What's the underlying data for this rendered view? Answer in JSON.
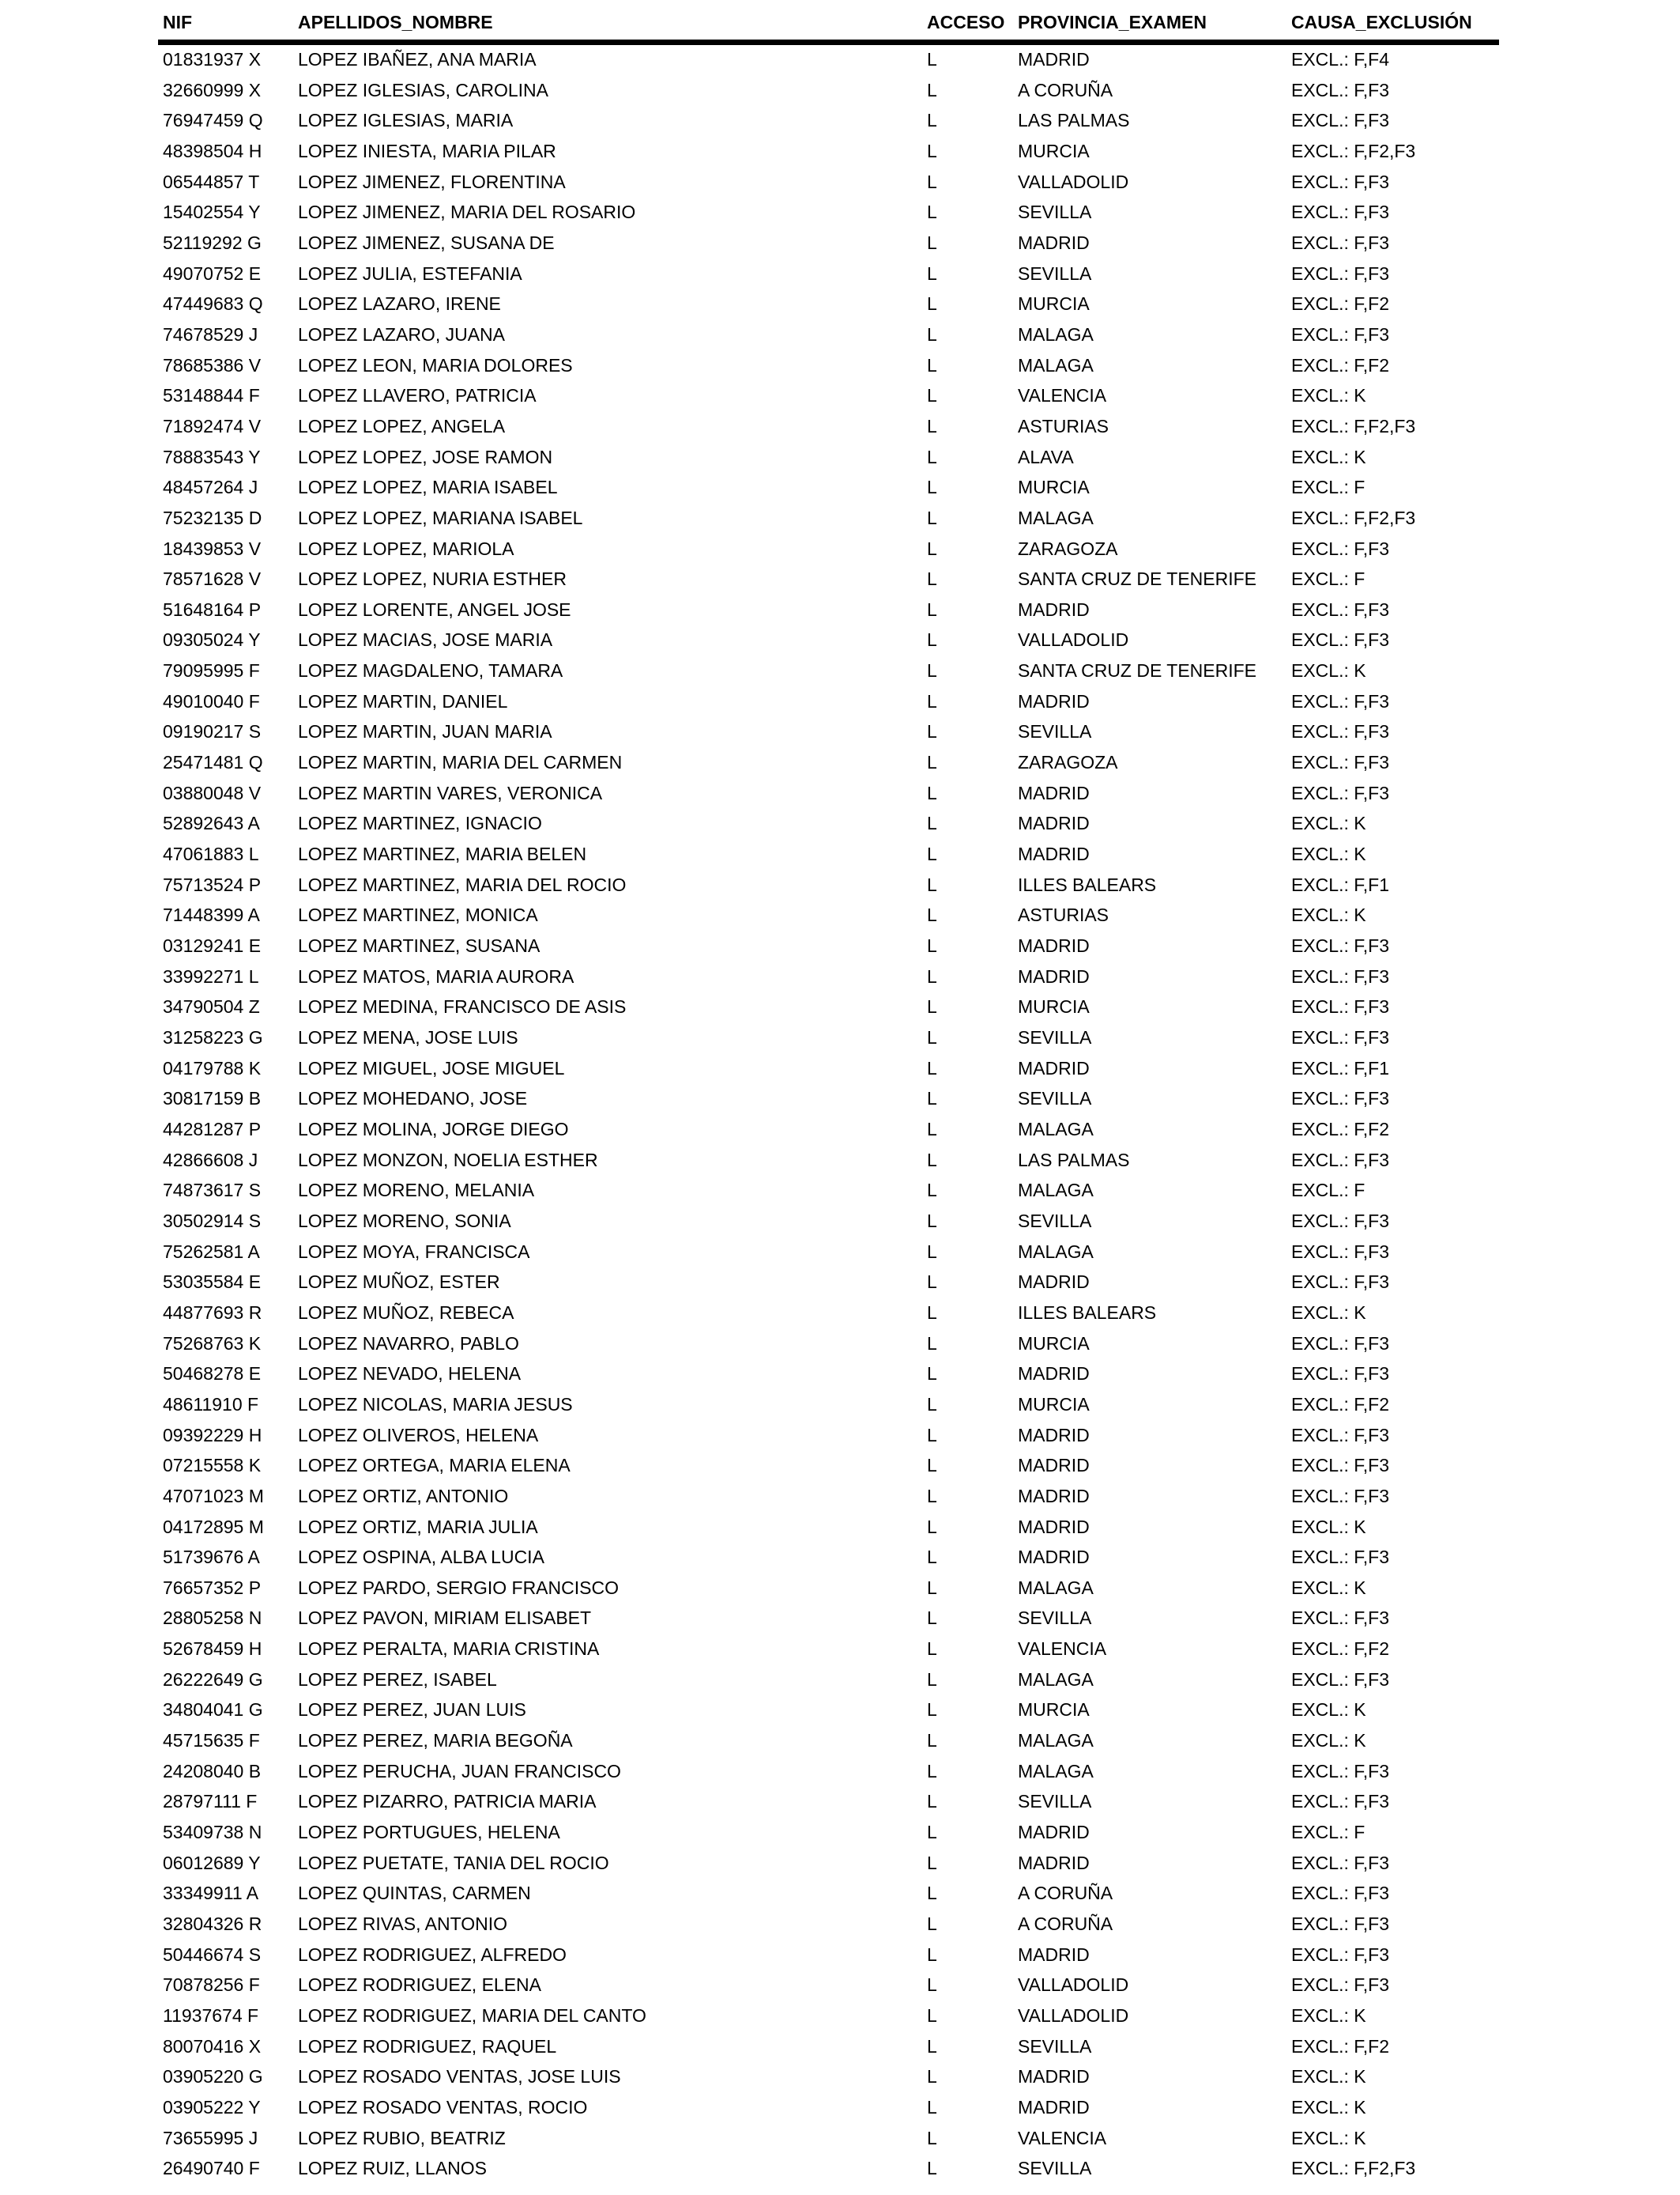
{
  "page": {
    "background_color": "#ffffff",
    "ink_color": "#000000"
  },
  "table": {
    "columns": [
      {
        "key": "nif",
        "label": "NIF"
      },
      {
        "key": "nombre",
        "label": "APELLIDOS_NOMBRE"
      },
      {
        "key": "acceso",
        "label": "ACCESO"
      },
      {
        "key": "provincia",
        "label": "PROVINCIA_EXAMEN"
      },
      {
        "key": "causa",
        "label": "CAUSA_EXCLUSIÓN"
      }
    ],
    "rows": [
      {
        "nif": "01831937 X",
        "nombre": "LOPEZ IBAÑEZ, ANA MARIA",
        "acceso": "L",
        "provincia": "MADRID",
        "causa": "EXCL.: F,F4"
      },
      {
        "nif": "32660999 X",
        "nombre": "LOPEZ IGLESIAS, CAROLINA",
        "acceso": "L",
        "provincia": "A CORUÑA",
        "causa": "EXCL.: F,F3"
      },
      {
        "nif": "76947459 Q",
        "nombre": "LOPEZ IGLESIAS, MARIA",
        "acceso": "L",
        "provincia": "LAS PALMAS",
        "causa": "EXCL.: F,F3"
      },
      {
        "nif": "48398504 H",
        "nombre": "LOPEZ INIESTA, MARIA PILAR",
        "acceso": "L",
        "provincia": "MURCIA",
        "causa": "EXCL.: F,F2,F3"
      },
      {
        "nif": "06544857 T",
        "nombre": "LOPEZ JIMENEZ, FLORENTINA",
        "acceso": "L",
        "provincia": "VALLADOLID",
        "causa": "EXCL.: F,F3"
      },
      {
        "nif": "15402554 Y",
        "nombre": "LOPEZ JIMENEZ, MARIA DEL ROSARIO",
        "acceso": "L",
        "provincia": "SEVILLA",
        "causa": "EXCL.: F,F3"
      },
      {
        "nif": "52119292 G",
        "nombre": "LOPEZ JIMENEZ, SUSANA DE",
        "acceso": "L",
        "provincia": "MADRID",
        "causa": "EXCL.: F,F3"
      },
      {
        "nif": "49070752 E",
        "nombre": "LOPEZ JULIA, ESTEFANIA",
        "acceso": "L",
        "provincia": "SEVILLA",
        "causa": "EXCL.: F,F3"
      },
      {
        "nif": "47449683 Q",
        "nombre": "LOPEZ LAZARO, IRENE",
        "acceso": "L",
        "provincia": "MURCIA",
        "causa": "EXCL.: F,F2"
      },
      {
        "nif": "74678529 J",
        "nombre": "LOPEZ LAZARO, JUANA",
        "acceso": "L",
        "provincia": "MALAGA",
        "causa": "EXCL.: F,F3"
      },
      {
        "nif": "78685386 V",
        "nombre": "LOPEZ LEON, MARIA DOLORES",
        "acceso": "L",
        "provincia": "MALAGA",
        "causa": "EXCL.: F,F2"
      },
      {
        "nif": "53148844 F",
        "nombre": "LOPEZ LLAVERO, PATRICIA",
        "acceso": "L",
        "provincia": "VALENCIA",
        "causa": "EXCL.: K"
      },
      {
        "nif": "71892474 V",
        "nombre": "LOPEZ LOPEZ, ANGELA",
        "acceso": "L",
        "provincia": "ASTURIAS",
        "causa": "EXCL.: F,F2,F3"
      },
      {
        "nif": "78883543 Y",
        "nombre": "LOPEZ LOPEZ, JOSE RAMON",
        "acceso": "L",
        "provincia": "ALAVA",
        "causa": "EXCL.: K"
      },
      {
        "nif": "48457264 J",
        "nombre": "LOPEZ LOPEZ, MARIA ISABEL",
        "acceso": "L",
        "provincia": "MURCIA",
        "causa": "EXCL.: F"
      },
      {
        "nif": "75232135 D",
        "nombre": "LOPEZ LOPEZ, MARIANA ISABEL",
        "acceso": "L",
        "provincia": "MALAGA",
        "causa": "EXCL.: F,F2,F3"
      },
      {
        "nif": "18439853 V",
        "nombre": "LOPEZ LOPEZ, MARIOLA",
        "acceso": "L",
        "provincia": "ZARAGOZA",
        "causa": "EXCL.: F,F3"
      },
      {
        "nif": "78571628 V",
        "nombre": "LOPEZ LOPEZ, NURIA ESTHER",
        "acceso": "L",
        "provincia": "SANTA CRUZ DE TENERIFE",
        "causa": "EXCL.: F"
      },
      {
        "nif": "51648164 P",
        "nombre": "LOPEZ LORENTE, ANGEL JOSE",
        "acceso": "L",
        "provincia": "MADRID",
        "causa": "EXCL.: F,F3"
      },
      {
        "nif": "09305024 Y",
        "nombre": "LOPEZ MACIAS, JOSE MARIA",
        "acceso": "L",
        "provincia": "VALLADOLID",
        "causa": "EXCL.: F,F3"
      },
      {
        "nif": "79095995 F",
        "nombre": "LOPEZ MAGDALENO, TAMARA",
        "acceso": "L",
        "provincia": "SANTA CRUZ DE TENERIFE",
        "causa": "EXCL.: K"
      },
      {
        "nif": "49010040 F",
        "nombre": "LOPEZ MARTIN, DANIEL",
        "acceso": "L",
        "provincia": "MADRID",
        "causa": "EXCL.: F,F3"
      },
      {
        "nif": "09190217 S",
        "nombre": "LOPEZ MARTIN, JUAN MARIA",
        "acceso": "L",
        "provincia": "SEVILLA",
        "causa": "EXCL.: F,F3"
      },
      {
        "nif": "25471481 Q",
        "nombre": "LOPEZ MARTIN, MARIA DEL CARMEN",
        "acceso": "L",
        "provincia": "ZARAGOZA",
        "causa": "EXCL.: F,F3"
      },
      {
        "nif": "03880048 V",
        "nombre": "LOPEZ MARTIN VARES, VERONICA",
        "acceso": "L",
        "provincia": "MADRID",
        "causa": "EXCL.: F,F3"
      },
      {
        "nif": "52892643 A",
        "nombre": "LOPEZ MARTINEZ, IGNACIO",
        "acceso": "L",
        "provincia": "MADRID",
        "causa": "EXCL.: K"
      },
      {
        "nif": "47061883 L",
        "nombre": "LOPEZ MARTINEZ, MARIA BELEN",
        "acceso": "L",
        "provincia": "MADRID",
        "causa": "EXCL.: K"
      },
      {
        "nif": "75713524 P",
        "nombre": "LOPEZ MARTINEZ, MARIA DEL ROCIO",
        "acceso": "L",
        "provincia": "ILLES BALEARS",
        "causa": "EXCL.: F,F1"
      },
      {
        "nif": "71448399 A",
        "nombre": "LOPEZ MARTINEZ, MONICA",
        "acceso": "L",
        "provincia": "ASTURIAS",
        "causa": "EXCL.: K"
      },
      {
        "nif": "03129241 E",
        "nombre": "LOPEZ MARTINEZ, SUSANA",
        "acceso": "L",
        "provincia": "MADRID",
        "causa": "EXCL.: F,F3"
      },
      {
        "nif": "33992271 L",
        "nombre": "LOPEZ MATOS, MARIA AURORA",
        "acceso": "L",
        "provincia": "MADRID",
        "causa": "EXCL.: F,F3"
      },
      {
        "nif": "34790504 Z",
        "nombre": "LOPEZ MEDINA, FRANCISCO DE ASIS",
        "acceso": "L",
        "provincia": "MURCIA",
        "causa": "EXCL.: F,F3"
      },
      {
        "nif": "31258223 G",
        "nombre": "LOPEZ MENA, JOSE LUIS",
        "acceso": "L",
        "provincia": "SEVILLA",
        "causa": "EXCL.: F,F3"
      },
      {
        "nif": "04179788 K",
        "nombre": "LOPEZ MIGUEL, JOSE MIGUEL",
        "acceso": "L",
        "provincia": "MADRID",
        "causa": "EXCL.: F,F1"
      },
      {
        "nif": "30817159 B",
        "nombre": "LOPEZ MOHEDANO, JOSE",
        "acceso": "L",
        "provincia": "SEVILLA",
        "causa": "EXCL.: F,F3"
      },
      {
        "nif": "44281287 P",
        "nombre": "LOPEZ MOLINA, JORGE DIEGO",
        "acceso": "L",
        "provincia": "MALAGA",
        "causa": "EXCL.: F,F2"
      },
      {
        "nif": "42866608 J",
        "nombre": "LOPEZ MONZON, NOELIA ESTHER",
        "acceso": "L",
        "provincia": "LAS PALMAS",
        "causa": "EXCL.: F,F3"
      },
      {
        "nif": "74873617 S",
        "nombre": "LOPEZ MORENO, MELANIA",
        "acceso": "L",
        "provincia": "MALAGA",
        "causa": "EXCL.: F"
      },
      {
        "nif": "30502914 S",
        "nombre": "LOPEZ MORENO, SONIA",
        "acceso": "L",
        "provincia": "SEVILLA",
        "causa": "EXCL.: F,F3"
      },
      {
        "nif": "75262581 A",
        "nombre": "LOPEZ MOYA, FRANCISCA",
        "acceso": "L",
        "provincia": "MALAGA",
        "causa": "EXCL.: F,F3"
      },
      {
        "nif": "53035584 E",
        "nombre": "LOPEZ MUÑOZ, ESTER",
        "acceso": "L",
        "provincia": "MADRID",
        "causa": "EXCL.: F,F3"
      },
      {
        "nif": "44877693 R",
        "nombre": "LOPEZ MUÑOZ, REBECA",
        "acceso": "L",
        "provincia": "ILLES BALEARS",
        "causa": "EXCL.: K"
      },
      {
        "nif": "75268763 K",
        "nombre": "LOPEZ NAVARRO, PABLO",
        "acceso": "L",
        "provincia": "MURCIA",
        "causa": "EXCL.: F,F3"
      },
      {
        "nif": "50468278 E",
        "nombre": "LOPEZ NEVADO, HELENA",
        "acceso": "L",
        "provincia": "MADRID",
        "causa": "EXCL.: F,F3"
      },
      {
        "nif": "48611910 F",
        "nombre": "LOPEZ NICOLAS, MARIA JESUS",
        "acceso": "L",
        "provincia": "MURCIA",
        "causa": "EXCL.: F,F2"
      },
      {
        "nif": "09392229 H",
        "nombre": "LOPEZ OLIVEROS, HELENA",
        "acceso": "L",
        "provincia": "MADRID",
        "causa": "EXCL.: F,F3"
      },
      {
        "nif": "07215558 K",
        "nombre": "LOPEZ ORTEGA, MARIA ELENA",
        "acceso": "L",
        "provincia": "MADRID",
        "causa": "EXCL.: F,F3"
      },
      {
        "nif": "47071023 M",
        "nombre": "LOPEZ ORTIZ, ANTONIO",
        "acceso": "L",
        "provincia": "MADRID",
        "causa": "EXCL.: F,F3"
      },
      {
        "nif": "04172895 M",
        "nombre": "LOPEZ ORTIZ, MARIA JULIA",
        "acceso": "L",
        "provincia": "MADRID",
        "causa": "EXCL.: K"
      },
      {
        "nif": "51739676 A",
        "nombre": "LOPEZ OSPINA, ALBA LUCIA",
        "acceso": "L",
        "provincia": "MADRID",
        "causa": "EXCL.: F,F3"
      },
      {
        "nif": "76657352 P",
        "nombre": "LOPEZ PARDO, SERGIO FRANCISCO",
        "acceso": "L",
        "provincia": "MALAGA",
        "causa": "EXCL.: K"
      },
      {
        "nif": "28805258 N",
        "nombre": "LOPEZ PAVON, MIRIAM ELISABET",
        "acceso": "L",
        "provincia": "SEVILLA",
        "causa": "EXCL.: F,F3"
      },
      {
        "nif": "52678459 H",
        "nombre": "LOPEZ PERALTA, MARIA CRISTINA",
        "acceso": "L",
        "provincia": "VALENCIA",
        "causa": "EXCL.: F,F2"
      },
      {
        "nif": "26222649 G",
        "nombre": "LOPEZ PEREZ, ISABEL",
        "acceso": "L",
        "provincia": "MALAGA",
        "causa": "EXCL.: F,F3"
      },
      {
        "nif": "34804041 G",
        "nombre": "LOPEZ PEREZ, JUAN LUIS",
        "acceso": "L",
        "provincia": "MURCIA",
        "causa": "EXCL.: K"
      },
      {
        "nif": "45715635 F",
        "nombre": "LOPEZ PEREZ, MARIA BEGOÑA",
        "acceso": "L",
        "provincia": "MALAGA",
        "causa": "EXCL.: K"
      },
      {
        "nif": "24208040 B",
        "nombre": "LOPEZ PERUCHA, JUAN FRANCISCO",
        "acceso": "L",
        "provincia": "MALAGA",
        "causa": "EXCL.: F,F3"
      },
      {
        "nif": "28797111 F",
        "nombre": "LOPEZ PIZARRO, PATRICIA MARIA",
        "acceso": "L",
        "provincia": "SEVILLA",
        "causa": "EXCL.: F,F3"
      },
      {
        "nif": "53409738 N",
        "nombre": "LOPEZ PORTUGUES, HELENA",
        "acceso": "L",
        "provincia": "MADRID",
        "causa": "EXCL.: F"
      },
      {
        "nif": "06012689 Y",
        "nombre": "LOPEZ PUETATE, TANIA DEL ROCIO",
        "acceso": "L",
        "provincia": "MADRID",
        "causa": "EXCL.: F,F3"
      },
      {
        "nif": "33349911 A",
        "nombre": "LOPEZ QUINTAS, CARMEN",
        "acceso": "L",
        "provincia": "A CORUÑA",
        "causa": "EXCL.: F,F3"
      },
      {
        "nif": "32804326 R",
        "nombre": "LOPEZ RIVAS, ANTONIO",
        "acceso": "L",
        "provincia": "A CORUÑA",
        "causa": "EXCL.: F,F3"
      },
      {
        "nif": "50446674 S",
        "nombre": "LOPEZ RODRIGUEZ, ALFREDO",
        "acceso": "L",
        "provincia": "MADRID",
        "causa": "EXCL.: F,F3"
      },
      {
        "nif": "70878256 F",
        "nombre": "LOPEZ RODRIGUEZ, ELENA",
        "acceso": "L",
        "provincia": "VALLADOLID",
        "causa": "EXCL.: F,F3"
      },
      {
        "nif": "11937674 F",
        "nombre": "LOPEZ RODRIGUEZ, MARIA DEL CANTO",
        "acceso": "L",
        "provincia": "VALLADOLID",
        "causa": "EXCL.: K"
      },
      {
        "nif": "80070416 X",
        "nombre": "LOPEZ RODRIGUEZ, RAQUEL",
        "acceso": "L",
        "provincia": "SEVILLA",
        "causa": "EXCL.: F,F2"
      },
      {
        "nif": "03905220 G",
        "nombre": "LOPEZ ROSADO VENTAS, JOSE LUIS",
        "acceso": "L",
        "provincia": "MADRID",
        "causa": "EXCL.: K"
      },
      {
        "nif": "03905222 Y",
        "nombre": "LOPEZ ROSADO VENTAS, ROCIO",
        "acceso": "L",
        "provincia": "MADRID",
        "causa": "EXCL.: K"
      },
      {
        "nif": "73655995 J",
        "nombre": "LOPEZ RUBIO, BEATRIZ",
        "acceso": "L",
        "provincia": "VALENCIA",
        "causa": "EXCL.: K"
      },
      {
        "nif": "26490740 F",
        "nombre": "LOPEZ RUIZ, LLANOS",
        "acceso": "L",
        "provincia": "SEVILLA",
        "causa": "EXCL.: F,F2,F3"
      }
    ]
  }
}
